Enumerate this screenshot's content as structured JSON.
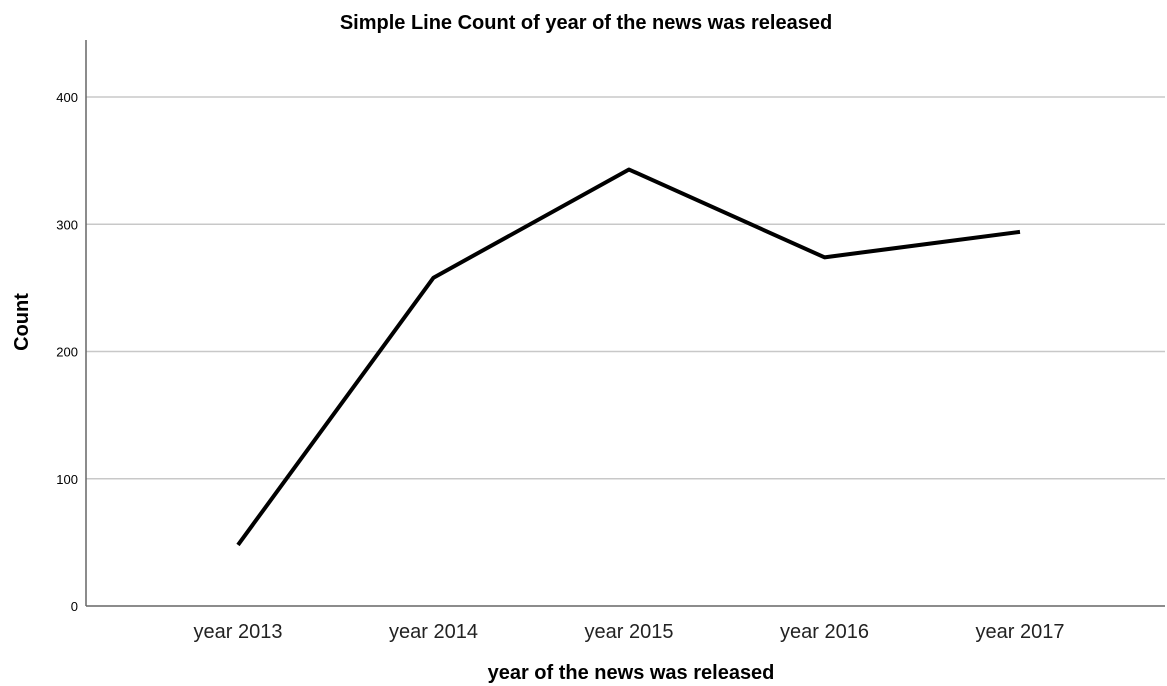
{
  "chart_data": {
    "type": "line",
    "title": "Simple Line Count of year of the news was released",
    "xlabel": "year of the news was released",
    "ylabel": "Count",
    "categories": [
      "year 2013",
      "year 2014",
      "year 2015",
      "year 2016",
      "year 2017"
    ],
    "series": [
      {
        "values": [
          48,
          258,
          343,
          274,
          294
        ]
      }
    ],
    "ylim": [
      0,
      400
    ],
    "yticks": [
      0,
      100,
      200,
      300,
      400
    ],
    "grid": true,
    "legend": "none",
    "colors": {
      "line": "#000000",
      "grid": "#c8c8c8",
      "axis": "#666666"
    }
  }
}
